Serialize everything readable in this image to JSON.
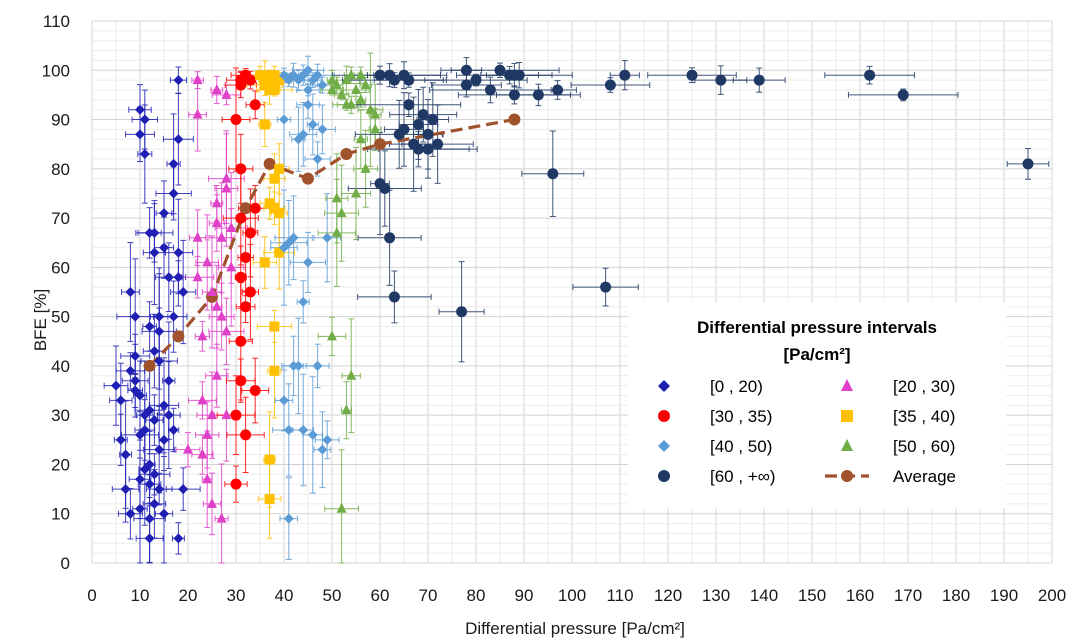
{
  "chart_data": {
    "type": "scatter",
    "xlabel": "Differential pressure [Pa/cm²]",
    "ylabel": "BFE [%]",
    "xlim": [
      0,
      200
    ],
    "ylim": [
      0,
      110
    ],
    "x_ticks": [
      "0",
      "10",
      "20",
      "30",
      "40",
      "50",
      "60",
      "70",
      "80",
      "90",
      "100",
      "110",
      "120",
      "130",
      "140",
      "150",
      "160",
      "170",
      "180",
      "190",
      "200"
    ],
    "y_ticks": [
      "0",
      "10",
      "20",
      "30",
      "40",
      "50",
      "60",
      "70",
      "80",
      "90",
      "100",
      "110"
    ],
    "grid": "major and minor",
    "legend_title": "Differential pressure intervals [Pa/cm²]",
    "legend_title_line1": "Differential pressure intervals",
    "legend_title_line2": "[Pa/cm²]",
    "legend_placement": "lower-right",
    "series": [
      {
        "name": "[0 , 20)",
        "marker": "diamond",
        "color": "#1f1fb4",
        "points": [
          [
            5,
            36
          ],
          [
            6,
            25
          ],
          [
            6,
            33
          ],
          [
            7,
            22
          ],
          [
            7,
            15
          ],
          [
            8,
            55
          ],
          [
            8,
            39
          ],
          [
            8,
            10
          ],
          [
            9,
            42
          ],
          [
            9,
            37
          ],
          [
            9,
            35
          ],
          [
            9,
            50
          ],
          [
            10,
            34
          ],
          [
            10,
            26
          ],
          [
            10,
            17
          ],
          [
            10,
            87
          ],
          [
            10,
            11
          ],
          [
            10,
            92
          ],
          [
            11,
            90
          ],
          [
            11,
            83
          ],
          [
            11,
            27
          ],
          [
            11,
            19
          ],
          [
            11,
            30
          ],
          [
            12,
            67
          ],
          [
            12,
            5
          ],
          [
            12,
            9
          ],
          [
            12,
            48
          ],
          [
            12,
            16
          ],
          [
            12,
            20
          ],
          [
            12,
            31
          ],
          [
            13,
            67
          ],
          [
            13,
            43
          ],
          [
            13,
            63
          ],
          [
            13,
            12
          ],
          [
            13,
            29
          ],
          [
            13,
            18
          ],
          [
            14,
            50
          ],
          [
            14,
            47
          ],
          [
            14,
            41
          ],
          [
            14,
            23
          ],
          [
            14,
            15
          ],
          [
            15,
            64
          ],
          [
            15,
            71
          ],
          [
            15,
            32
          ],
          [
            15,
            10
          ],
          [
            15,
            25
          ],
          [
            16,
            58
          ],
          [
            16,
            37
          ],
          [
            16,
            30
          ],
          [
            17,
            50
          ],
          [
            17,
            81
          ],
          [
            17,
            75
          ],
          [
            17,
            27
          ],
          [
            18,
            86
          ],
          [
            18,
            63
          ],
          [
            18,
            98
          ],
          [
            18,
            58
          ],
          [
            18,
            5
          ],
          [
            19,
            55
          ],
          [
            19,
            15
          ]
        ]
      },
      {
        "name": "[20 , 30)",
        "marker": "triangle",
        "color": "#e040c8",
        "points": [
          [
            20,
            23
          ],
          [
            22,
            91
          ],
          [
            22,
            98
          ],
          [
            22,
            66
          ],
          [
            22,
            58
          ],
          [
            23,
            46
          ],
          [
            23,
            33
          ],
          [
            23,
            22
          ],
          [
            24,
            26
          ],
          [
            24,
            17
          ],
          [
            24,
            61
          ],
          [
            25,
            55
          ],
          [
            25,
            30
          ],
          [
            25,
            12
          ],
          [
            26,
            96
          ],
          [
            26,
            73
          ],
          [
            26,
            69
          ],
          [
            26,
            52
          ],
          [
            26,
            38
          ],
          [
            27,
            66
          ],
          [
            27,
            50
          ],
          [
            27,
            9
          ],
          [
            28,
            95
          ],
          [
            28,
            78
          ],
          [
            28,
            76
          ],
          [
            28,
            47
          ],
          [
            28,
            30
          ],
          [
            29,
            68
          ],
          [
            29,
            60
          ]
        ]
      },
      {
        "name": "[30 , 35)",
        "marker": "circle",
        "color": "#ff0000",
        "points": [
          [
            30,
            90
          ],
          [
            30,
            16
          ],
          [
            30,
            30
          ],
          [
            31,
            98
          ],
          [
            31,
            97
          ],
          [
            31,
            80
          ],
          [
            31,
            70
          ],
          [
            31,
            58
          ],
          [
            31,
            45
          ],
          [
            31,
            37
          ],
          [
            32,
            99
          ],
          [
            32,
            62
          ],
          [
            32,
            52
          ],
          [
            32,
            26
          ],
          [
            33,
            98
          ],
          [
            33,
            67
          ],
          [
            33,
            55
          ],
          [
            34,
            93
          ],
          [
            34,
            35
          ],
          [
            34,
            72
          ]
        ]
      },
      {
        "name": "[35 , 40)",
        "marker": "square",
        "color": "#ffc000",
        "points": [
          [
            35,
            99
          ],
          [
            36,
            97
          ],
          [
            36,
            89
          ],
          [
            36,
            61
          ],
          [
            37,
            98
          ],
          [
            37,
            73
          ],
          [
            37,
            21
          ],
          [
            37,
            13
          ],
          [
            38,
            96
          ],
          [
            38,
            78
          ],
          [
            38,
            72
          ],
          [
            38,
            39
          ],
          [
            38,
            48
          ],
          [
            39,
            98
          ],
          [
            39,
            80
          ],
          [
            39,
            63
          ],
          [
            39,
            71
          ],
          [
            36,
            99
          ],
          [
            37,
            96
          ],
          [
            38,
            99
          ]
        ]
      },
      {
        "name": "[40 , 50)",
        "marker": "diamond",
        "color": "#5b9bd5",
        "points": [
          [
            40,
            99
          ],
          [
            40,
            90
          ],
          [
            40,
            64
          ],
          [
            40,
            33
          ],
          [
            41,
            98
          ],
          [
            41,
            65
          ],
          [
            41,
            27
          ],
          [
            41,
            9
          ],
          [
            42,
            99
          ],
          [
            42,
            66
          ],
          [
            42,
            40
          ],
          [
            43,
            98
          ],
          [
            43,
            86
          ],
          [
            43,
            40
          ],
          [
            44,
            99
          ],
          [
            44,
            87
          ],
          [
            44,
            53
          ],
          [
            44,
            27
          ],
          [
            45,
            100
          ],
          [
            45,
            93
          ],
          [
            45,
            96
          ],
          [
            45,
            61
          ],
          [
            46,
            98
          ],
          [
            46,
            89
          ],
          [
            46,
            26
          ],
          [
            47,
            99
          ],
          [
            47,
            82
          ],
          [
            47,
            40
          ],
          [
            48,
            97
          ],
          [
            48,
            23
          ],
          [
            48,
            88
          ],
          [
            49,
            66
          ],
          [
            49,
            25
          ]
        ]
      },
      {
        "name": "[50 , 60)",
        "marker": "triangle",
        "color": "#70ad47",
        "points": [
          [
            50,
            98
          ],
          [
            50,
            96
          ],
          [
            50,
            46
          ],
          [
            51,
            97
          ],
          [
            51,
            74
          ],
          [
            51,
            67
          ],
          [
            52,
            95
          ],
          [
            52,
            11
          ],
          [
            52,
            71
          ],
          [
            53,
            98
          ],
          [
            53,
            31
          ],
          [
            53,
            93
          ],
          [
            54,
            93
          ],
          [
            54,
            38
          ],
          [
            55,
            96
          ],
          [
            55,
            75
          ],
          [
            56,
            94
          ],
          [
            56,
            86
          ],
          [
            57,
            97
          ],
          [
            57,
            80
          ],
          [
            58,
            92
          ],
          [
            59,
            91
          ],
          [
            59,
            88
          ],
          [
            54,
            99
          ],
          [
            56,
            99
          ]
        ]
      },
      {
        "name": "[60 , +∞)",
        "marker": "circle",
        "color": "#1f3864",
        "points": [
          [
            60,
            99
          ],
          [
            60,
            77
          ],
          [
            61,
            76
          ],
          [
            62,
            99
          ],
          [
            62,
            66
          ],
          [
            63,
            54
          ],
          [
            63,
            98
          ],
          [
            64,
            87
          ],
          [
            65,
            99
          ],
          [
            65,
            88
          ],
          [
            66,
            98
          ],
          [
            66,
            93
          ],
          [
            67,
            85
          ],
          [
            68,
            89
          ],
          [
            68,
            84
          ],
          [
            69,
            91
          ],
          [
            70,
            87
          ],
          [
            70,
            84
          ],
          [
            71,
            90
          ],
          [
            72,
            85
          ],
          [
            78,
            100
          ],
          [
            78,
            97
          ],
          [
            80,
            98
          ],
          [
            83,
            96
          ],
          [
            85,
            100
          ],
          [
            87,
            99
          ],
          [
            88,
            99
          ],
          [
            88,
            95
          ],
          [
            89,
            99
          ],
          [
            77,
            51
          ],
          [
            93,
            95
          ],
          [
            96,
            79
          ],
          [
            97,
            96
          ],
          [
            107,
            56
          ],
          [
            108,
            97
          ],
          [
            111,
            99
          ],
          [
            125,
            99
          ],
          [
            131,
            98
          ],
          [
            139,
            98
          ],
          [
            162,
            99
          ],
          [
            169,
            95
          ],
          [
            195,
            81
          ]
        ]
      },
      {
        "name": "Average",
        "marker": "line-circle",
        "color": "#a0522d",
        "points": [
          [
            12,
            40
          ],
          [
            18,
            46
          ],
          [
            25,
            54
          ],
          [
            32,
            72
          ],
          [
            37,
            81
          ],
          [
            45,
            78
          ],
          [
            53,
            83
          ],
          [
            60,
            85
          ],
          [
            88,
            90
          ]
        ]
      }
    ]
  }
}
